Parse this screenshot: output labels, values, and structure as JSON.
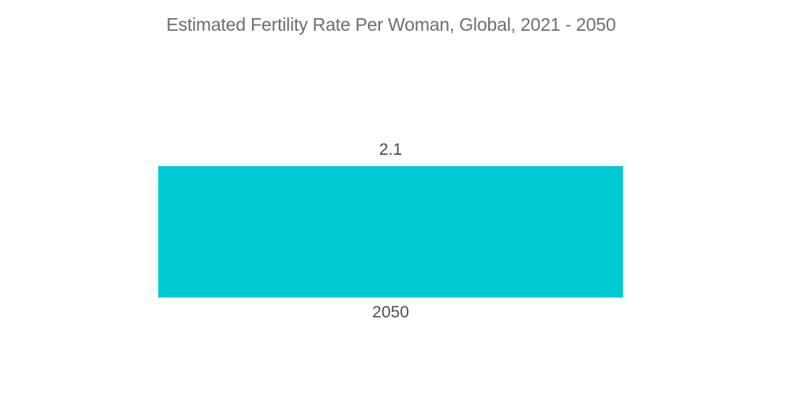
{
  "page": {
    "background": "#ffffff"
  },
  "chart_data": {
    "type": "bar",
    "title": "Estimated Fertility Rate Per Woman, Global, 2021 - 2050",
    "categories": [
      "2050"
    ],
    "values": [
      2.1
    ],
    "data_labels": [
      "2.1"
    ],
    "xlabel": "",
    "ylabel": "",
    "ylim": [
      0,
      2.52
    ],
    "grid": false,
    "legend": false,
    "axes_visible": false,
    "bar_color": "#00C9D2",
    "title_color": "#6e6e6e",
    "value_label_color": "#4a4a4a",
    "category_label_color": "#4f4f4f"
  }
}
